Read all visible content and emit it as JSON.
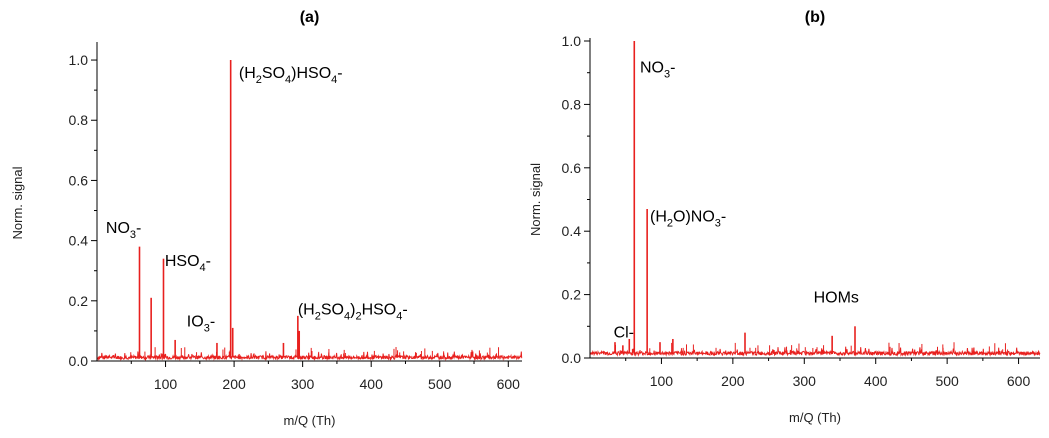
{
  "chart_data": [
    {
      "type": "line",
      "panel_label": "(a)",
      "xlabel": "m/Q (Th)",
      "ylabel": "Norm. signal",
      "xlim": [
        0,
        620
      ],
      "ylim": [
        0,
        1.05
      ],
      "xticks": [
        100,
        200,
        300,
        400,
        500,
        600
      ],
      "yticks": [
        0.0,
        0.2,
        0.4,
        0.6,
        0.8,
        1.0
      ],
      "baseline": 0.012,
      "color": "#e8201e",
      "grid": false,
      "series": [
        {
          "peaks": [
            {
              "x": 62,
              "y": 0.38
            },
            {
              "x": 79,
              "y": 0.21
            },
            {
              "x": 97,
              "y": 0.34
            },
            {
              "x": 114,
              "y": 0.07
            },
            {
              "x": 175,
              "y": 0.06
            },
            {
              "x": 195,
              "y": 1.0
            },
            {
              "x": 198,
              "y": 0.11
            },
            {
              "x": 272,
              "y": 0.06
            },
            {
              "x": 293,
              "y": 0.15
            },
            {
              "x": 295,
              "y": 0.1
            }
          ]
        }
      ],
      "annotations": [
        {
          "parts": [
            [
              "NO",
              ""
            ],
            [
              "3",
              "sub"
            ],
            [
              "-",
              ""
            ]
          ],
          "x": 13,
          "y": 0.425
        },
        {
          "parts": [
            [
              "HSO",
              ""
            ],
            [
              "4",
              "sub"
            ],
            [
              "-",
              ""
            ]
          ],
          "x": 99,
          "y": 0.315
        },
        {
          "parts": [
            [
              "IO",
              ""
            ],
            [
              "3",
              "sub"
            ],
            [
              "-",
              ""
            ]
          ],
          "x": 131,
          "y": 0.115
        },
        {
          "parts": [
            [
              "(H",
              ""
            ],
            [
              "2",
              "sub"
            ],
            [
              "SO",
              ""
            ],
            [
              "4",
              "sub"
            ],
            [
              ")HSO",
              ""
            ],
            [
              "4",
              "sub"
            ],
            [
              "-",
              ""
            ]
          ],
          "x": 207,
          "y": 0.94
        },
        {
          "parts": [
            [
              "(H",
              ""
            ],
            [
              "2",
              "sub"
            ],
            [
              "SO",
              ""
            ],
            [
              "4",
              "sub"
            ],
            [
              ")",
              ""
            ],
            [
              "2",
              "sub"
            ],
            [
              "HSO",
              ""
            ],
            [
              "4",
              "sub"
            ],
            [
              "-",
              ""
            ]
          ],
          "x": 293,
          "y": 0.155
        }
      ]
    },
    {
      "type": "line",
      "panel_label": "(b)",
      "xlabel": "m/Q (Th)",
      "ylabel": "Norm. signal",
      "xlim": [
        0,
        630
      ],
      "ylim": [
        0,
        1.0
      ],
      "xticks": [
        100,
        200,
        300,
        400,
        500,
        600
      ],
      "yticks": [
        0.0,
        0.2,
        0.4,
        0.6,
        0.8,
        1.0
      ],
      "baseline": 0.015,
      "color": "#e8201e",
      "grid": false,
      "series": [
        {
          "peaks": [
            {
              "x": 35,
              "y": 0.05
            },
            {
              "x": 46,
              "y": 0.04
            },
            {
              "x": 55,
              "y": 0.06
            },
            {
              "x": 62,
              "y": 1.0
            },
            {
              "x": 80,
              "y": 0.47
            },
            {
              "x": 98,
              "y": 0.05
            },
            {
              "x": 116,
              "y": 0.06
            },
            {
              "x": 217,
              "y": 0.08
            },
            {
              "x": 339,
              "y": 0.07
            },
            {
              "x": 371,
              "y": 0.1
            }
          ]
        }
      ],
      "annotations": [
        {
          "parts": [
            [
              "Cl-",
              ""
            ]
          ],
          "x": 33,
          "y": 0.065
        },
        {
          "parts": [
            [
              "NO",
              ""
            ],
            [
              "3",
              "sub"
            ],
            [
              "-",
              ""
            ]
          ],
          "x": 70,
          "y": 0.9
        },
        {
          "parts": [
            [
              "(H",
              ""
            ],
            [
              "2",
              "sub"
            ],
            [
              "O)NO",
              ""
            ],
            [
              "3",
              "sub"
            ],
            [
              "-",
              ""
            ]
          ],
          "x": 84,
          "y": 0.43
        },
        {
          "parts": [
            [
              "HOMs",
              ""
            ]
          ],
          "x": 313,
          "y": 0.175
        }
      ]
    }
  ]
}
